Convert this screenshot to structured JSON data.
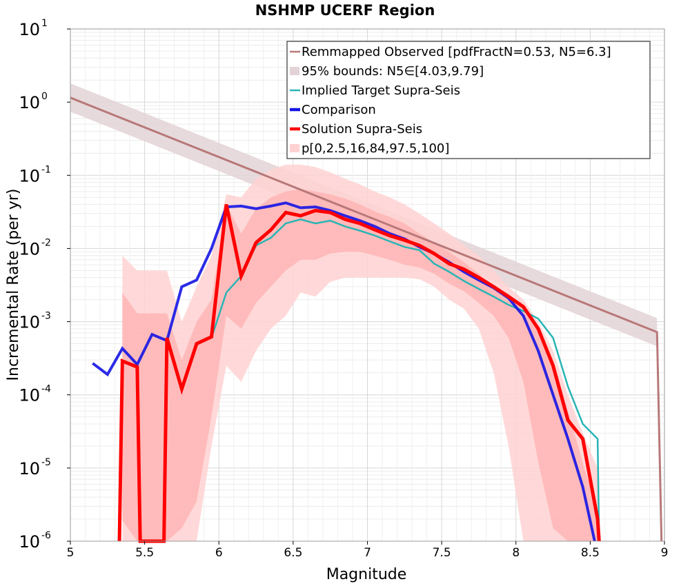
{
  "chart_data": {
    "type": "line",
    "title": "NSHMP UCERF Region",
    "xlabel": "Magnitude",
    "ylabel": "Incremental Rate (per yr)",
    "xlim": [
      5,
      9
    ],
    "ylim": [
      1e-06,
      10
    ],
    "y_scale": "log",
    "x_ticks": [
      "5",
      "5.5",
      "6",
      "6.5",
      "7",
      "7.5",
      "8",
      "8.5",
      "9"
    ],
    "y_ticks": [
      {
        "base": "10",
        "exp": "1"
      },
      {
        "base": "10",
        "exp": "0"
      },
      {
        "base": "10",
        "exp": "-1"
      },
      {
        "base": "10",
        "exp": "-2"
      },
      {
        "base": "10",
        "exp": "-3"
      },
      {
        "base": "10",
        "exp": "-4"
      },
      {
        "base": "10",
        "exp": "-5"
      },
      {
        "base": "10",
        "exp": "-6"
      }
    ],
    "grid": true,
    "legend_position": "top-right",
    "legend": [
      {
        "label": "Remmapped Observed [pdfFractN=0.53, N5=6.3]",
        "color": "#b87878",
        "style": "line"
      },
      {
        "label": "95% bounds: N5∈[4.03,9.79]",
        "color": "#e3d3d6",
        "style": "band"
      },
      {
        "label": "Implied Target Supra-Seis",
        "color": "#28b4b4",
        "style": "line"
      },
      {
        "label": "Comparison",
        "color": "#1414e6",
        "style": "thick-line"
      },
      {
        "label": "Solution Supra-Seis",
        "color": "#ff0000",
        "style": "thick-line"
      },
      {
        "label": "p[0,2.5,16,84,97.5,100]",
        "color": "#ffd2d2",
        "style": "band"
      }
    ],
    "series": [
      {
        "name": "Remmapped Observed [pdfFractN=0.53, N5=6.3]",
        "color": "#b87878",
        "x": [
          5.0,
          8.95,
          8.98
        ],
        "y": [
          1.15,
          0.00072,
          1e-06
        ]
      },
      {
        "name": "95% bounds: N5∈[4.03,9.79]",
        "color": "#e3d3d6",
        "kind": "band",
        "x": [
          5.0,
          8.95
        ],
        "y_low": [
          0.74,
          0.00046
        ],
        "y_high": [
          1.8,
          0.00112
        ]
      },
      {
        "name": "p[0,2.5,16,84,97.5,100]",
        "color": "#ffd2d2",
        "kind": "band",
        "x": [
          5.35,
          5.45,
          5.65,
          5.75,
          5.85,
          5.95,
          6.05,
          6.15,
          6.25,
          6.35,
          6.45,
          6.55,
          6.65,
          6.75,
          6.85,
          6.95,
          7.05,
          7.15,
          7.25,
          7.35,
          7.45,
          7.55,
          7.65,
          7.75,
          7.85,
          7.95,
          8.05,
          8.15,
          8.25,
          8.35,
          8.45,
          8.55
        ],
        "y_low": [
          1e-06,
          1e-06,
          1e-06,
          1e-06,
          1e-06,
          2e-05,
          0.00025,
          0.00015,
          0.0004,
          0.0008,
          0.0012,
          0.0025,
          0.0022,
          0.0035,
          0.004,
          0.004,
          0.004,
          0.004,
          0.004,
          0.0038,
          0.003,
          0.002,
          0.0015,
          0.0008,
          0.0002,
          2e-05,
          1e-06,
          1e-06,
          1e-06,
          1e-06,
          1e-06,
          1e-06
        ],
        "y_high": [
          0.008,
          0.005,
          0.005,
          0.001,
          0.003,
          0.008,
          0.055,
          0.05,
          0.09,
          0.12,
          0.14,
          0.14,
          0.13,
          0.11,
          0.09,
          0.075,
          0.06,
          0.05,
          0.04,
          0.03,
          0.022,
          0.016,
          0.011,
          0.008,
          0.005,
          0.003,
          0.002,
          0.001,
          0.0004,
          0.0001,
          3e-05,
          1e-05
        ]
      },
      {
        "name": "p 16-84",
        "color": "#ffb0b0",
        "kind": "band",
        "x": [
          5.35,
          5.45,
          5.65,
          5.75,
          5.85,
          5.95,
          6.05,
          6.15,
          6.25,
          6.35,
          6.45,
          6.55,
          6.65,
          6.75,
          6.85,
          6.95,
          7.05,
          7.15,
          7.25,
          7.35,
          7.45,
          7.55,
          7.65,
          7.75,
          7.85,
          7.95,
          8.05,
          8.15,
          8.25,
          8.35,
          8.45,
          8.55
        ],
        "y_low": [
          1.91e-06,
          1e-06,
          1e-06,
          1.5e-06,
          3.5e-06,
          5e-05,
          0.0012,
          0.0008,
          0.0018,
          0.003,
          0.005,
          0.007,
          0.007,
          0.0085,
          0.009,
          0.009,
          0.008,
          0.007,
          0.006,
          0.0055,
          0.0045,
          0.0033,
          0.0026,
          0.0018,
          0.0012,
          0.0006,
          0.00015,
          1.2e-05,
          1.5e-06,
          1e-06,
          1e-06,
          1e-06
        ],
        "y_high": [
          0.0025,
          0.0013,
          0.0013,
          0.0003,
          0.001,
          0.002,
          0.04,
          0.016,
          0.035,
          0.05,
          0.06,
          0.065,
          0.06,
          0.055,
          0.048,
          0.04,
          0.032,
          0.027,
          0.022,
          0.016,
          0.012,
          0.009,
          0.0065,
          0.0045,
          0.003,
          0.0024,
          0.0016,
          0.0008,
          0.0003,
          6e-05,
          1.2e-05,
          2.5e-06
        ]
      },
      {
        "name": "Implied Target Supra-Seis",
        "color": "#28b4b4",
        "x": [
          5.95,
          6.05,
          6.15,
          6.25,
          6.35,
          6.45,
          6.55,
          6.65,
          6.75,
          6.85,
          6.95,
          7.05,
          7.15,
          7.25,
          7.35,
          7.45,
          7.55,
          7.65,
          7.75,
          7.85,
          7.95,
          8.05,
          8.15,
          8.25,
          8.35,
          8.45,
          8.55,
          8.56
        ],
        "y": [
          0.0006,
          0.0025,
          0.0042,
          0.011,
          0.014,
          0.022,
          0.025,
          0.022,
          0.024,
          0.02,
          0.0175,
          0.015,
          0.0125,
          0.0105,
          0.0095,
          0.0062,
          0.0048,
          0.0036,
          0.0028,
          0.0022,
          0.0017,
          0.0014,
          0.0011,
          0.0006,
          0.00013,
          4e-05,
          2.5e-05,
          1e-06
        ]
      },
      {
        "name": "Comparison",
        "color": "#1414e6",
        "x": [
          5.15,
          5.25,
          5.35,
          5.45,
          5.55,
          5.65,
          5.75,
          5.85,
          5.95,
          6.05,
          6.15,
          6.25,
          6.35,
          6.45,
          6.55,
          6.65,
          6.75,
          6.85,
          6.95,
          7.05,
          7.15,
          7.25,
          7.35,
          7.45,
          7.55,
          7.65,
          7.75,
          7.85,
          7.95,
          8.05,
          8.15,
          8.25,
          8.35,
          8.45,
          8.53
        ],
        "y": [
          0.00027,
          0.00019,
          0.00043,
          0.00026,
          0.00067,
          0.00055,
          0.003,
          0.0037,
          0.01,
          0.037,
          0.038,
          0.035,
          0.038,
          0.042,
          0.036,
          0.037,
          0.033,
          0.028,
          0.024,
          0.02,
          0.016,
          0.0135,
          0.0105,
          0.0085,
          0.0065,
          0.0048,
          0.0037,
          0.0029,
          0.0021,
          0.0012,
          0.0004,
          0.0001,
          2.5e-05,
          5.5e-06,
          1e-06
        ]
      },
      {
        "name": "Solution Supra-Seis",
        "color": "#ff0000",
        "x": [
          5.33,
          5.35,
          5.45,
          5.47,
          5.63,
          5.65,
          5.75,
          5.85,
          5.95,
          6.05,
          6.15,
          6.25,
          6.35,
          6.45,
          6.55,
          6.65,
          6.75,
          6.85,
          6.95,
          7.05,
          7.15,
          7.25,
          7.35,
          7.45,
          7.55,
          7.65,
          7.75,
          7.85,
          7.95,
          8.05,
          8.15,
          8.25,
          8.35,
          8.45,
          8.55,
          8.56
        ],
        "y": [
          1e-06,
          0.00029,
          0.00024,
          1e-06,
          1e-06,
          0.0006,
          0.00012,
          0.0005,
          0.00062,
          0.04,
          0.0042,
          0.012,
          0.018,
          0.031,
          0.028,
          0.033,
          0.031,
          0.025,
          0.022,
          0.018,
          0.015,
          0.013,
          0.011,
          0.0085,
          0.0062,
          0.0052,
          0.004,
          0.003,
          0.0022,
          0.0016,
          0.0008,
          0.00025,
          4.5e-05,
          2.5e-05,
          2e-06,
          1e-06
        ]
      }
    ]
  }
}
